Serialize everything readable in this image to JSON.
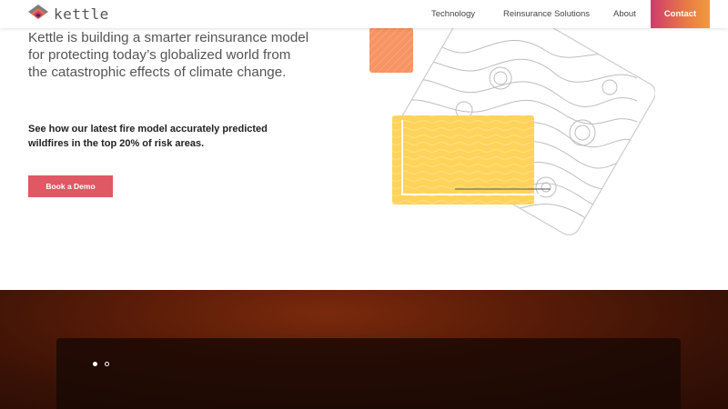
{
  "header": {
    "logo_text": "kettle",
    "nav": {
      "technology": "Technology",
      "reinsurance": "Reinsurance Solutions",
      "about": "About",
      "contact": "Contact"
    }
  },
  "hero": {
    "headline": "Kettle is building a smarter reinsurance model for protecting today’s globalized world from the catastrophic effects of climate change.",
    "subtext": "See how our latest fire model accurately predicted wildfires in the top 20% of risk areas.",
    "cta_label": "Book a Demo"
  },
  "colors": {
    "cta": "#e05864",
    "contact_gradient_start": "#cf3b6d",
    "contact_gradient_end": "#f09b3b",
    "orange_block": "#f79463",
    "yellow_block": "#fdd35a"
  },
  "carousel": {
    "active_index": 1,
    "count": 2
  }
}
